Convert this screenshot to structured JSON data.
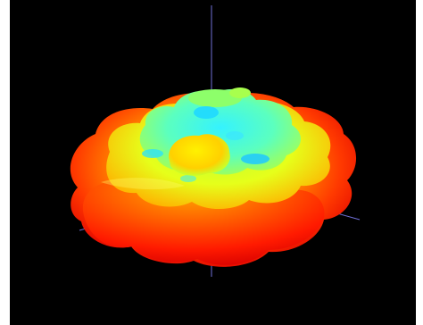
{
  "viewer": {
    "background_color": "#000000",
    "axis_color": "#6f6fd6",
    "axis_labels": {
      "z_top": "",
      "x_pos": "",
      "y_pos": "",
      "x_neg": "",
      "z_bottom": ""
    }
  },
  "surface": {
    "colormap": [
      "#ff0000",
      "#ff7a00",
      "#ffe100",
      "#b6ff3a",
      "#5cffb0",
      "#1fe6ff"
    ]
  }
}
